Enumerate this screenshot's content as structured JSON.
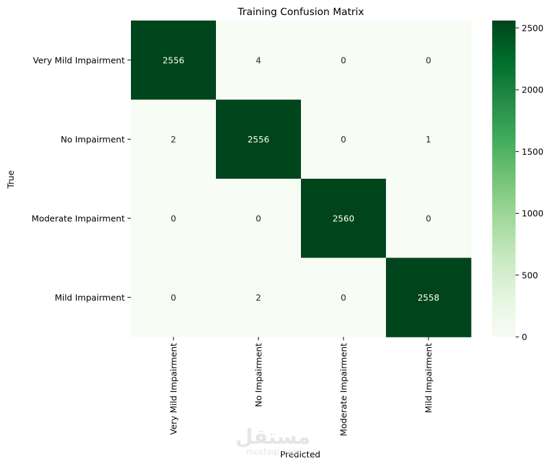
{
  "chart_data": {
    "type": "heatmap",
    "title": "Training Confusion Matrix",
    "xlabel": "Predicted",
    "ylabel": "True",
    "x_categories": [
      "Very Mild Impairment",
      "No Impairment",
      "Moderate Impairment",
      "Mild Impairment"
    ],
    "y_categories": [
      "Very Mild Impairment",
      "No Impairment",
      "Moderate Impairment",
      "Mild Impairment"
    ],
    "matrix": [
      [
        2556,
        4,
        0,
        0
      ],
      [
        2,
        2556,
        0,
        1
      ],
      [
        0,
        0,
        2560,
        0
      ],
      [
        0,
        2,
        0,
        2558
      ]
    ],
    "colorbar": {
      "colormap": "Greens",
      "vmin": 0,
      "vmax": 2560,
      "ticks": [
        0,
        500,
        1000,
        1500,
        2000,
        2500
      ],
      "low_color": "#f7fcf5",
      "high_color": "#00441b"
    }
  },
  "watermark": {
    "logo_text": "مستقل",
    "domain_text": "mostaql.com"
  }
}
